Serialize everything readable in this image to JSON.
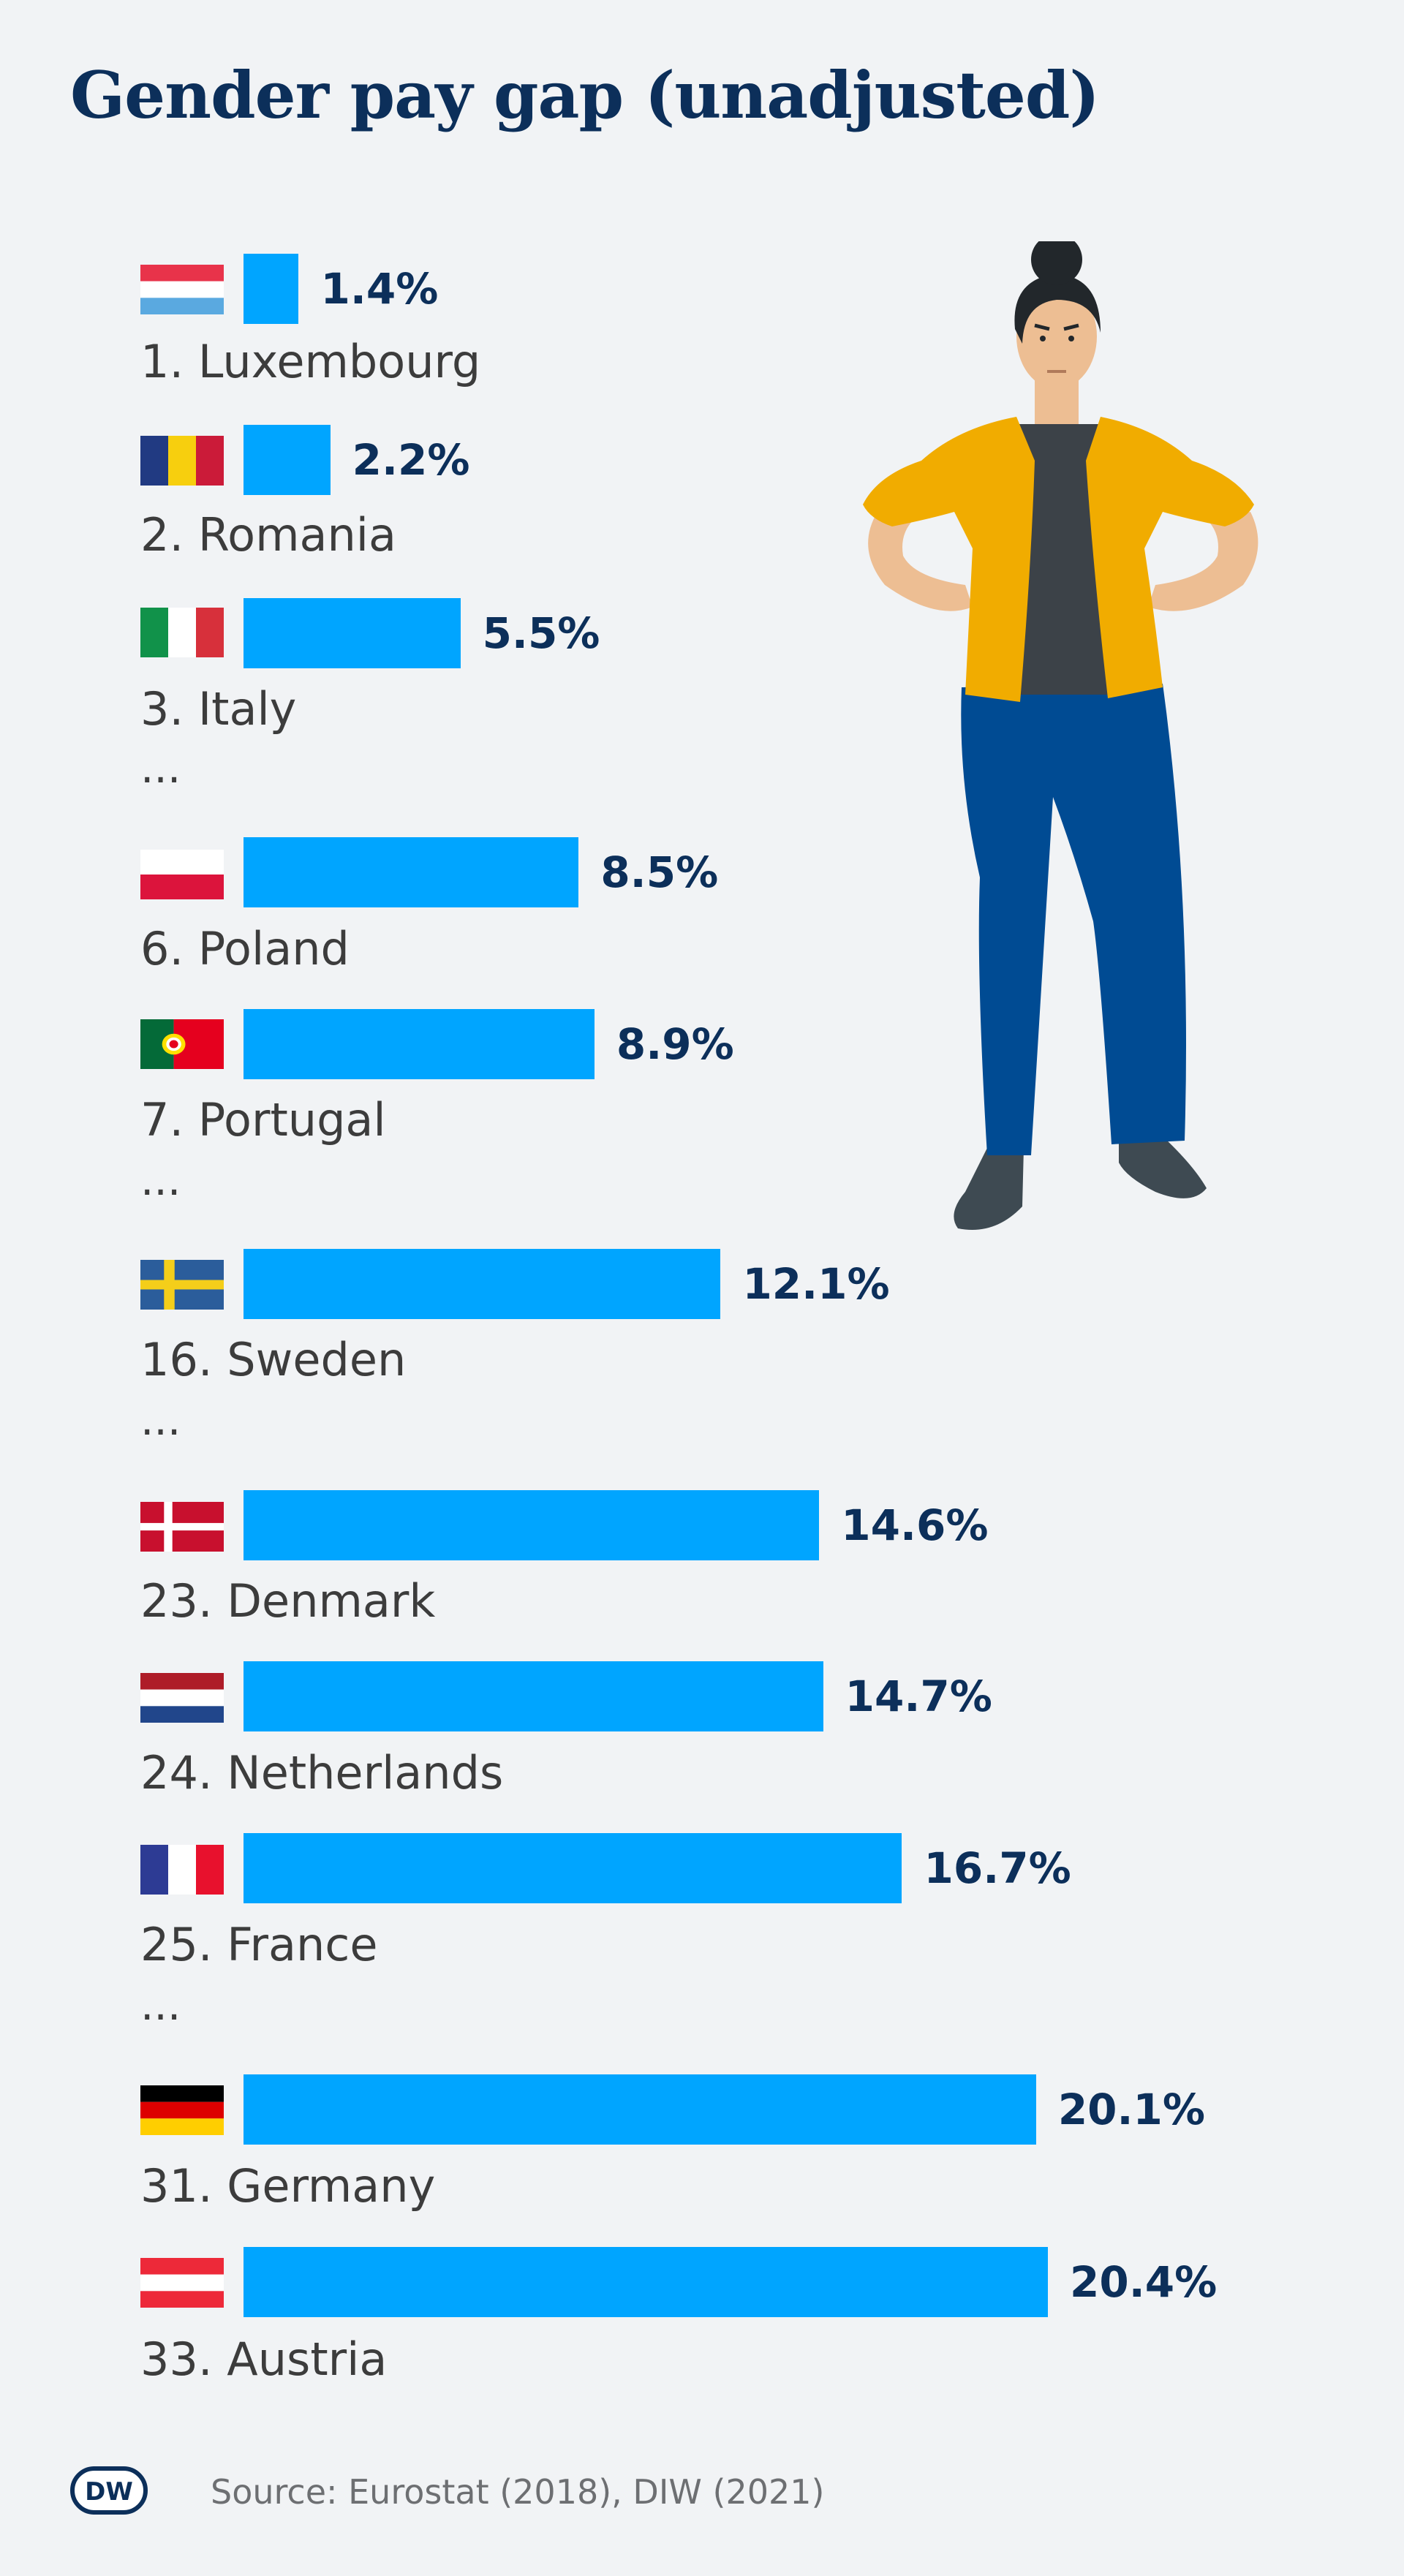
{
  "title": "Gender pay gap (unadjusted)",
  "source": "Source: Eurostat (2018), DIW (2021)",
  "ellipsis": "...",
  "logo_text": "DW",
  "colors": {
    "bar": "#00a5ff",
    "title": "#0c2f5a",
    "background": "#f1f3f5"
  },
  "chart_data": {
    "type": "bar",
    "orientation": "horizontal",
    "title": "Gender pay gap (unadjusted)",
    "unit": "%",
    "xlim": [
      0,
      20.4
    ],
    "categories": [
      "1. Luxembourg",
      "2. Romania",
      "3. Italy",
      "6. Poland",
      "7. Portugal",
      "16. Sweden",
      "23. Denmark",
      "24. Netherlands",
      "25. France",
      "31. Germany",
      "33. Austria"
    ],
    "values": [
      1.4,
      2.2,
      5.5,
      8.5,
      8.9,
      12.1,
      14.6,
      14.7,
      16.7,
      20.1,
      20.4
    ],
    "value_labels": [
      "1.4%",
      "2.2%",
      "5.5%",
      "8.5%",
      "8.9%",
      "12.1%",
      "14.6%",
      "14.7%",
      "16.7%",
      "20.1%",
      "20.4%"
    ],
    "flags": [
      "luxembourg-flag-icon",
      "romania-flag-icon",
      "italy-flag-icon",
      "poland-flag-icon",
      "portugal-flag-icon",
      "sweden-flag-icon",
      "denmark-flag-icon",
      "netherlands-flag-icon",
      "france-flag-icon",
      "germany-flag-icon",
      "austria-flag-icon"
    ],
    "gaps_after": [
      "3. Italy",
      "7. Portugal",
      "16. Sweden",
      "25. France"
    ]
  }
}
